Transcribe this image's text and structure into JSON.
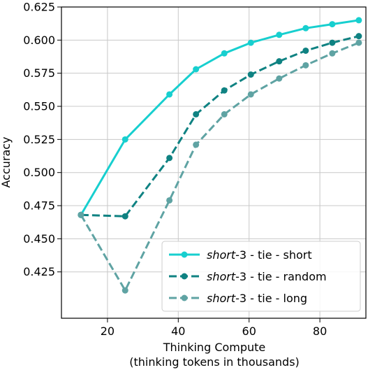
{
  "chart_data": {
    "type": "line",
    "title": "",
    "xlabel_line1": "Thinking Compute",
    "xlabel_line2": "(thinking tokens in thousands)",
    "ylabel": "Accuracy",
    "xlim": [
      7,
      93
    ],
    "ylim": [
      0.39,
      0.625
    ],
    "xticks": [
      20,
      40,
      60,
      80
    ],
    "yticks": [
      0.425,
      0.45,
      0.475,
      0.5,
      0.525,
      0.55,
      0.575,
      0.6,
      0.625
    ],
    "xtick_labels": [
      "20",
      "40",
      "60",
      "80"
    ],
    "ytick_labels": [
      "0.425",
      "0.450",
      "0.475",
      "0.500",
      "0.525",
      "0.550",
      "0.575",
      "0.600",
      "0.625"
    ],
    "grid": true,
    "legend_position": "lower-right",
    "series": [
      {
        "name_italic": "short",
        "name_rest": "-3 - tie - short",
        "color": "#17cfcf",
        "dash": "solid",
        "x": [
          12.5,
          25,
          37.5,
          45,
          53,
          60.5,
          68.5,
          76,
          83.5,
          91
        ],
        "y": [
          0.468,
          0.525,
          0.559,
          0.578,
          0.59,
          0.598,
          0.604,
          0.609,
          0.612,
          0.615
        ]
      },
      {
        "name_italic": "short",
        "name_rest": "-3 - tie - random",
        "color": "#0f8282",
        "dash": "dashed",
        "x": [
          12.5,
          25,
          37.5,
          45,
          53,
          60.5,
          68.5,
          76,
          83.5,
          91
        ],
        "y": [
          0.468,
          0.467,
          0.511,
          0.544,
          0.562,
          0.574,
          0.584,
          0.592,
          0.598,
          0.603
        ]
      },
      {
        "name_italic": "short",
        "name_rest": "-3 - tie - long",
        "color": "#5fa3a3",
        "dash": "dashed",
        "x": [
          12.5,
          25,
          37.5,
          45,
          53,
          60.5,
          68.5,
          76,
          83.5,
          91
        ],
        "y": [
          0.468,
          0.411,
          0.479,
          0.521,
          0.544,
          0.559,
          0.571,
          0.581,
          0.59,
          0.598
        ]
      }
    ]
  }
}
